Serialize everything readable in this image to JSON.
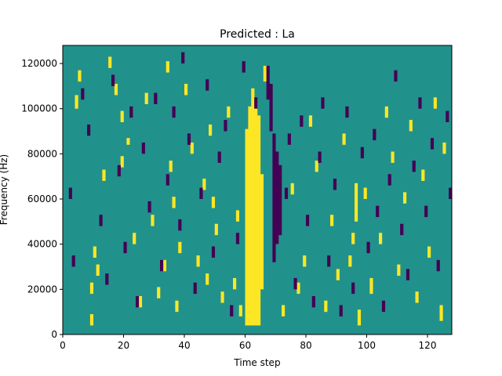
{
  "chart_data": {
    "type": "heatmap",
    "title": "Predicted : La",
    "xlabel": "Time step",
    "ylabel": "Frequency (Hz)",
    "xlim": [
      0,
      128
    ],
    "ylim": [
      0,
      128000
    ],
    "x_ticks": [
      0,
      20,
      40,
      60,
      80,
      100,
      120
    ],
    "y_ticks": [
      0,
      20000,
      40000,
      60000,
      80000,
      100000,
      120000
    ],
    "grid": false,
    "legend": "none",
    "colormap": "viridis",
    "value_levels": [
      -1,
      0,
      1
    ],
    "colors": {
      "low": "#440154",
      "mid": "#21918c",
      "high": "#fde725"
    },
    "background_value": 0,
    "columns": 128,
    "rows": 128,
    "bin_height_hz": 1000,
    "positive_cells": [
      [
        60,
        4,
        90
      ],
      [
        61,
        4,
        100
      ],
      [
        62,
        4,
        108
      ],
      [
        63,
        4,
        103
      ],
      [
        64,
        4,
        96
      ],
      [
        65,
        20,
        70
      ],
      [
        4,
        100,
        105
      ],
      [
        5,
        112,
        116
      ],
      [
        9,
        4,
        8
      ],
      [
        9,
        18,
        22
      ],
      [
        10,
        34,
        38
      ],
      [
        11,
        26,
        30
      ],
      [
        13,
        68,
        72
      ],
      [
        15,
        118,
        122
      ],
      [
        17,
        106,
        110
      ],
      [
        19,
        94,
        98
      ],
      [
        19,
        74,
        78
      ],
      [
        21,
        84,
        86
      ],
      [
        23,
        40,
        44
      ],
      [
        25,
        12,
        16
      ],
      [
        27,
        102,
        106
      ],
      [
        29,
        48,
        52
      ],
      [
        31,
        16,
        20
      ],
      [
        33,
        28,
        32
      ],
      [
        34,
        116,
        120
      ],
      [
        35,
        72,
        76
      ],
      [
        36,
        56,
        60
      ],
      [
        37,
        10,
        14
      ],
      [
        38,
        36,
        40
      ],
      [
        40,
        106,
        110
      ],
      [
        42,
        80,
        84
      ],
      [
        44,
        30,
        34
      ],
      [
        46,
        64,
        68
      ],
      [
        47,
        22,
        26
      ],
      [
        48,
        88,
        92
      ],
      [
        49,
        56,
        60
      ],
      [
        50,
        44,
        48
      ],
      [
        52,
        14,
        18
      ],
      [
        54,
        96,
        100
      ],
      [
        56,
        20,
        24
      ],
      [
        57,
        50,
        54
      ],
      [
        58,
        8,
        12
      ],
      [
        66,
        112,
        118
      ],
      [
        70,
        40,
        44
      ],
      [
        72,
        8,
        12
      ],
      [
        75,
        62,
        66
      ],
      [
        77,
        18,
        22
      ],
      [
        79,
        30,
        34
      ],
      [
        81,
        92,
        96
      ],
      [
        83,
        72,
        76
      ],
      [
        86,
        10,
        14
      ],
      [
        88,
        48,
        52
      ],
      [
        90,
        24,
        28
      ],
      [
        92,
        84,
        88
      ],
      [
        94,
        30,
        34
      ],
      [
        95,
        40,
        44
      ],
      [
        96,
        50,
        66
      ],
      [
        97,
        4,
        10
      ],
      [
        99,
        60,
        64
      ],
      [
        101,
        18,
        24
      ],
      [
        104,
        40,
        44
      ],
      [
        106,
        96,
        100
      ],
      [
        108,
        76,
        80
      ],
      [
        110,
        26,
        30
      ],
      [
        112,
        58,
        62
      ],
      [
        114,
        90,
        94
      ],
      [
        116,
        14,
        18
      ],
      [
        118,
        68,
        72
      ],
      [
        120,
        34,
        38
      ],
      [
        122,
        100,
        104
      ],
      [
        124,
        6,
        12
      ],
      [
        125,
        80,
        84
      ]
    ],
    "negative_cells": [
      [
        69,
        32,
        88
      ],
      [
        70,
        40,
        80
      ],
      [
        71,
        44,
        74
      ],
      [
        68,
        90,
        110
      ],
      [
        67,
        104,
        118
      ],
      [
        2,
        60,
        64
      ],
      [
        3,
        30,
        34
      ],
      [
        6,
        104,
        108
      ],
      [
        8,
        88,
        92
      ],
      [
        12,
        48,
        52
      ],
      [
        14,
        22,
        26
      ],
      [
        16,
        110,
        114
      ],
      [
        18,
        70,
        74
      ],
      [
        20,
        36,
        40
      ],
      [
        22,
        96,
        100
      ],
      [
        24,
        12,
        16
      ],
      [
        26,
        80,
        84
      ],
      [
        28,
        54,
        58
      ],
      [
        30,
        102,
        106
      ],
      [
        32,
        28,
        32
      ],
      [
        34,
        66,
        70
      ],
      [
        36,
        96,
        100
      ],
      [
        38,
        46,
        50
      ],
      [
        39,
        120,
        124
      ],
      [
        41,
        84,
        88
      ],
      [
        43,
        18,
        22
      ],
      [
        45,
        60,
        64
      ],
      [
        47,
        108,
        112
      ],
      [
        49,
        34,
        38
      ],
      [
        51,
        76,
        80
      ],
      [
        53,
        90,
        94
      ],
      [
        55,
        8,
        12
      ],
      [
        57,
        40,
        44
      ],
      [
        59,
        116,
        120
      ],
      [
        63,
        100,
        104
      ],
      [
        73,
        60,
        64
      ],
      [
        74,
        84,
        88
      ],
      [
        76,
        20,
        24
      ],
      [
        78,
        92,
        96
      ],
      [
        80,
        48,
        52
      ],
      [
        82,
        12,
        16
      ],
      [
        84,
        76,
        80
      ],
      [
        85,
        100,
        104
      ],
      [
        87,
        30,
        34
      ],
      [
        89,
        64,
        68
      ],
      [
        91,
        8,
        12
      ],
      [
        93,
        96,
        100
      ],
      [
        95,
        18,
        22
      ],
      [
        98,
        78,
        82
      ],
      [
        100,
        36,
        40
      ],
      [
        102,
        86,
        90
      ],
      [
        103,
        52,
        56
      ],
      [
        105,
        10,
        14
      ],
      [
        107,
        66,
        70
      ],
      [
        109,
        112,
        116
      ],
      [
        111,
        44,
        48
      ],
      [
        113,
        24,
        28
      ],
      [
        115,
        72,
        76
      ],
      [
        117,
        100,
        104
      ],
      [
        119,
        52,
        56
      ],
      [
        121,
        82,
        86
      ],
      [
        123,
        28,
        32
      ],
      [
        126,
        94,
        98
      ],
      [
        127,
        60,
        64
      ]
    ]
  }
}
